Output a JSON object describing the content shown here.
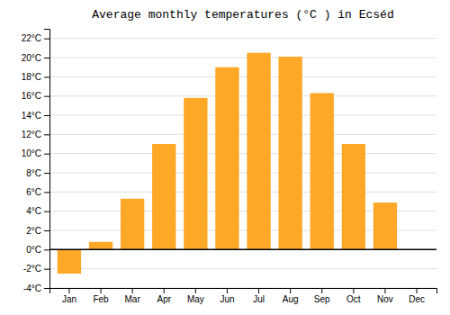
{
  "chart_data": {
    "type": "bar",
    "title": "Average monthly temperatures (°C ) in Ecséd",
    "categories": [
      "Jan",
      "Feb",
      "Mar",
      "Apr",
      "May",
      "Jun",
      "Jul",
      "Aug",
      "Sep",
      "Oct",
      "Nov",
      "Dec"
    ],
    "values": [
      -2.5,
      0.8,
      5.3,
      11.0,
      15.8,
      19.0,
      20.5,
      20.1,
      16.3,
      11.0,
      4.9,
      0.0
    ],
    "color": "#FFA726",
    "ylim": [
      -4,
      23
    ],
    "yticks": [
      {
        "value": -4,
        "label": "-4°C"
      },
      {
        "value": -2,
        "label": "-2°C"
      },
      {
        "value": 0,
        "label": "0°C"
      },
      {
        "value": 2,
        "label": "2°C"
      },
      {
        "value": 4,
        "label": "4°C"
      },
      {
        "value": 6,
        "label": "6°C"
      },
      {
        "value": 8,
        "label": "8°C"
      },
      {
        "value": 10,
        "label": "10°C"
      },
      {
        "value": 12,
        "label": "12°C"
      },
      {
        "value": 14,
        "label": "14°C"
      },
      {
        "value": 16,
        "label": "16°C"
      },
      {
        "value": 18,
        "label": "18°C"
      },
      {
        "value": 20,
        "label": "20°C"
      },
      {
        "value": 22,
        "label": "22°C"
      }
    ],
    "grid": true
  }
}
